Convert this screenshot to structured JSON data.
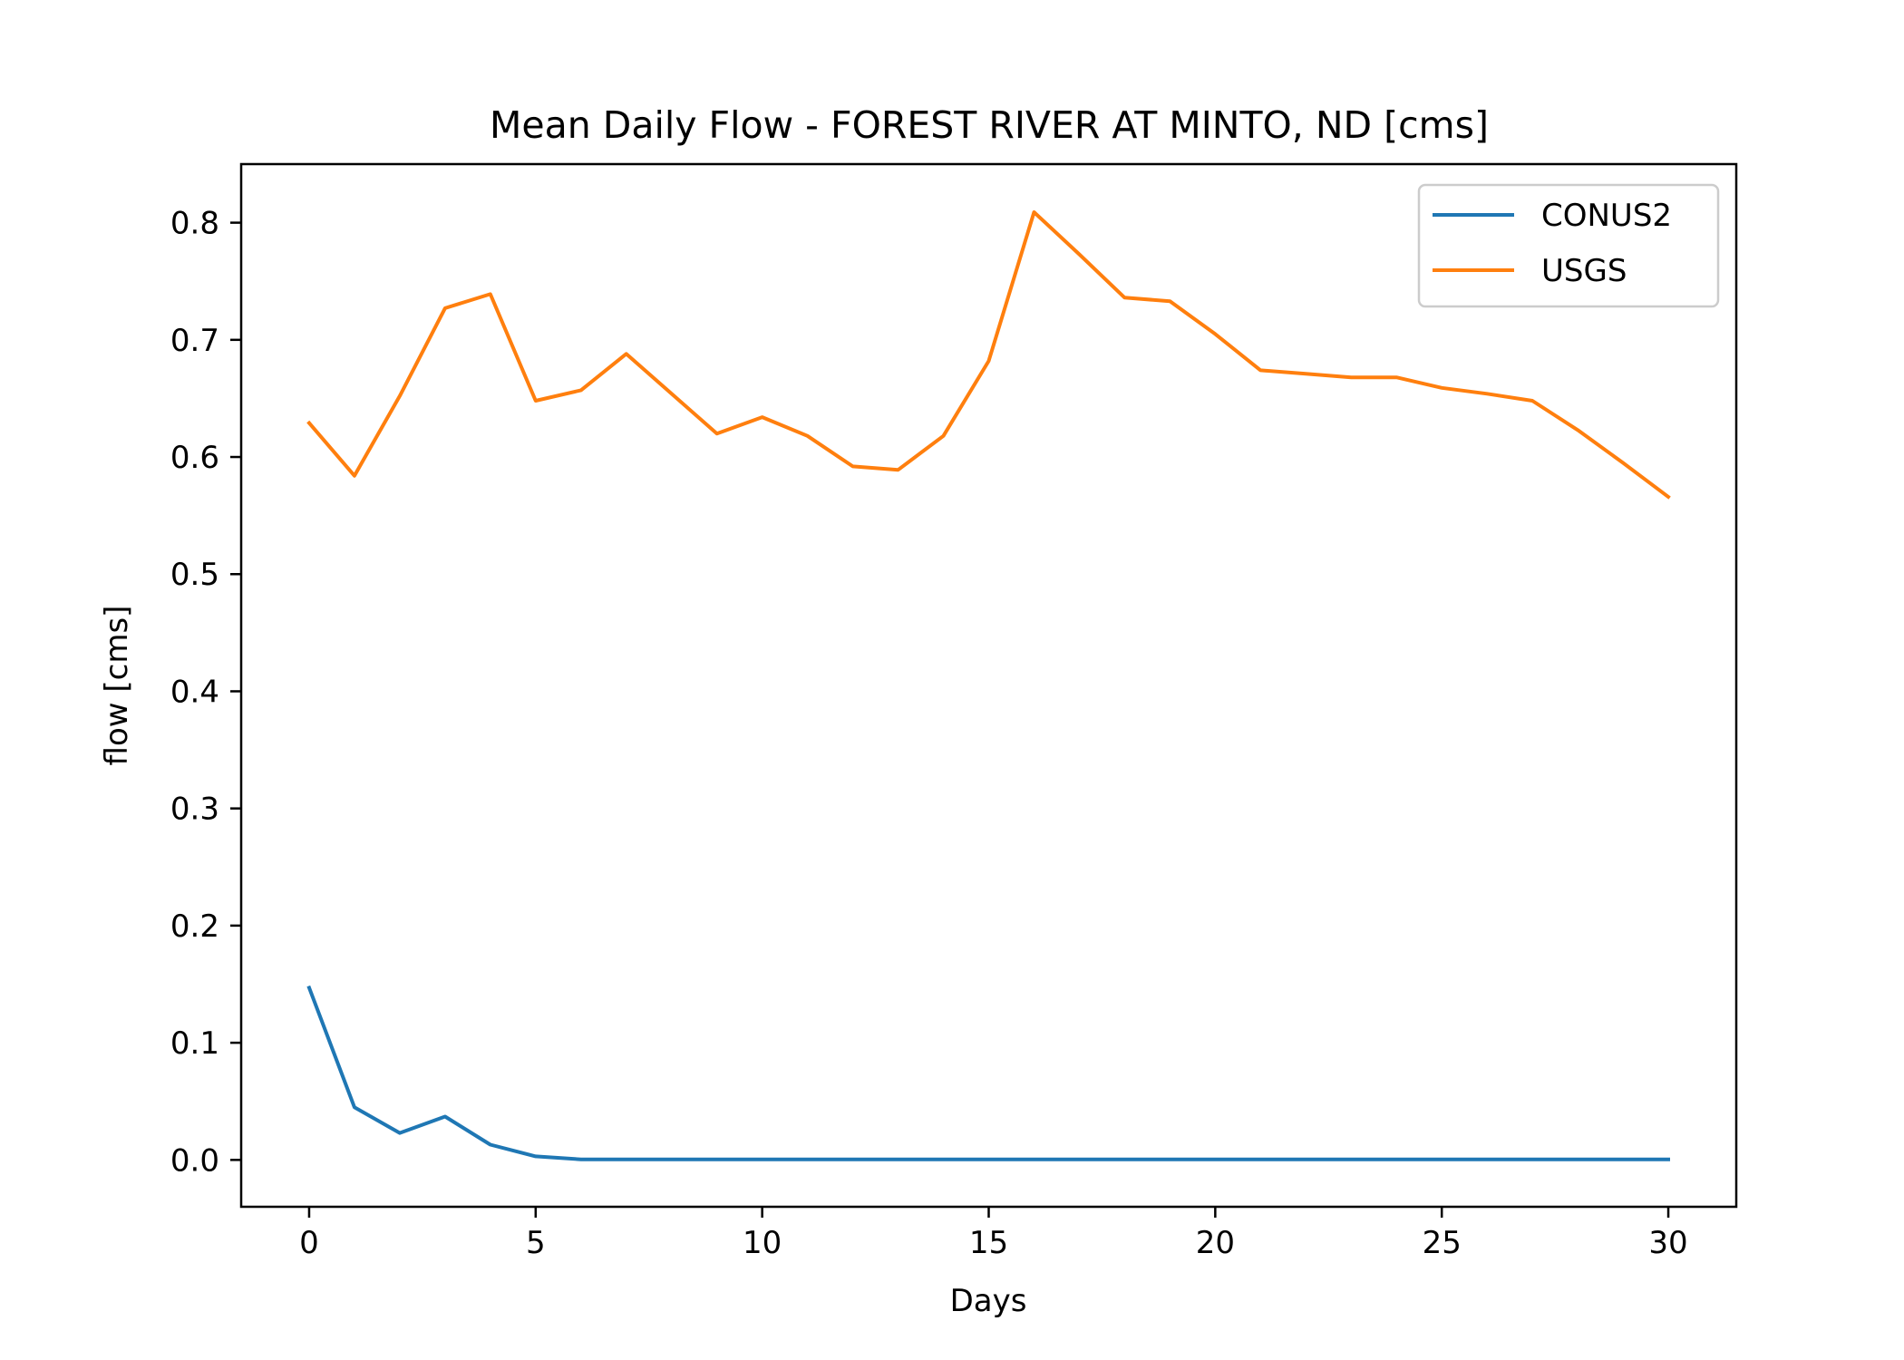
{
  "chart_data": {
    "type": "line",
    "title": "Mean Daily Flow - FOREST RIVER AT MINTO, ND [cms]",
    "xlabel": "Days",
    "ylabel": "flow [cms]",
    "xlim": [
      -1.5,
      31.5
    ],
    "ylim": [
      -0.04,
      0.85
    ],
    "xticks": [
      0,
      5,
      10,
      15,
      20,
      25,
      30
    ],
    "yticks": [
      0.0,
      0.1,
      0.2,
      0.3,
      0.4,
      0.5,
      0.6,
      0.7,
      0.8
    ],
    "ytick_labels": [
      "0.0",
      "0.1",
      "0.2",
      "0.3",
      "0.4",
      "0.5",
      "0.6",
      "0.7",
      "0.8"
    ],
    "grid": false,
    "legend_position": "top-right",
    "x": [
      0,
      1,
      2,
      3,
      4,
      5,
      6,
      7,
      8,
      9,
      10,
      11,
      12,
      13,
      14,
      15,
      16,
      17,
      18,
      19,
      20,
      21,
      22,
      23,
      24,
      25,
      26,
      27,
      28,
      29,
      30
    ],
    "series": [
      {
        "name": "CONUS2",
        "color": "#1f77b4",
        "values": [
          0.147,
          0.045,
          0.023,
          0.037,
          0.013,
          0.003,
          0.0005,
          0.0005,
          0.0005,
          0.0005,
          0.0005,
          0.0005,
          0.0005,
          0.0005,
          0.0005,
          0.0005,
          0.0005,
          0.0005,
          0.0005,
          0.0005,
          0.0005,
          0.0005,
          0.0005,
          0.0005,
          0.0005,
          0.0005,
          0.0005,
          0.0005,
          0.0005,
          0.0005,
          0.0005
        ]
      },
      {
        "name": "USGS",
        "color": "#ff7f0e",
        "values": [
          0.629,
          0.584,
          0.652,
          0.727,
          0.739,
          0.648,
          0.657,
          0.688,
          0.654,
          0.62,
          0.634,
          0.618,
          0.592,
          0.589,
          0.618,
          0.682,
          0.809,
          0.773,
          0.736,
          0.733,
          0.705,
          0.674,
          0.671,
          0.668,
          0.668,
          0.659,
          0.654,
          0.648,
          0.623,
          0.595,
          0.566
        ]
      }
    ]
  }
}
